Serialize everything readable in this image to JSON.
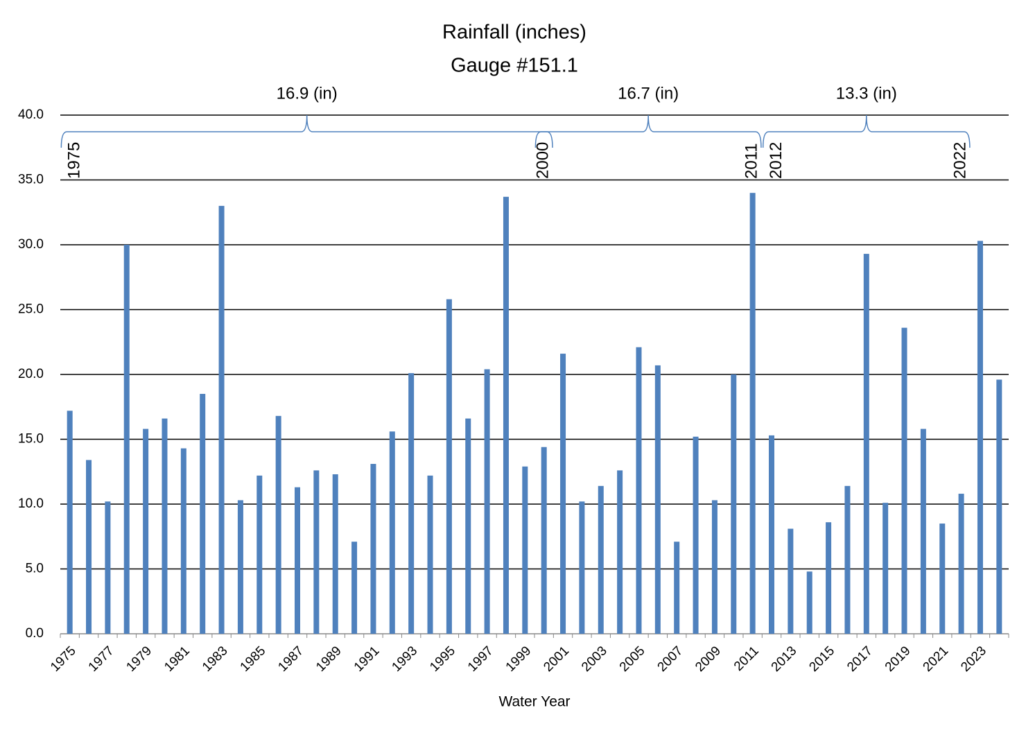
{
  "chart_data": {
    "type": "bar",
    "title": "Rainfall (inches)",
    "subtitle": "Gauge #151.1",
    "x_label": "Water Year",
    "color": "#4f81bd",
    "grid": true,
    "categories": [
      "1975",
      null,
      "1977",
      null,
      "1979",
      null,
      "1981",
      null,
      "1983",
      null,
      "1985",
      null,
      "1987",
      null,
      "1989",
      null,
      "1991",
      null,
      "1993",
      null,
      "1995",
      null,
      "1997",
      null,
      "1999",
      null,
      "2001",
      null,
      "2003",
      null,
      "2005",
      null,
      "2007",
      null,
      "2009",
      null,
      "2011",
      null,
      "2013",
      null,
      "2015",
      null,
      "2017",
      null,
      "2019",
      null,
      "2021",
      null,
      "2023",
      null
    ],
    "values": [
      17.2,
      13.4,
      10.2,
      30.0,
      15.8,
      16.6,
      14.3,
      18.5,
      33.0,
      10.3,
      12.2,
      16.8,
      11.3,
      12.6,
      12.3,
      7.1,
      13.1,
      15.6,
      20.1,
      12.2,
      25.8,
      16.6,
      20.4,
      33.7,
      12.9,
      14.4,
      21.6,
      10.2,
      11.4,
      12.6,
      22.1,
      20.7,
      7.1,
      15.2,
      10.3,
      20.0,
      34.0,
      15.3,
      8.1,
      4.8,
      8.6,
      11.4,
      29.3,
      10.1,
      23.6,
      15.8,
      8.5,
      10.8,
      30.3,
      19.6
    ],
    "ylim": [
      0,
      40
    ],
    "yticks": [
      {
        "value": 0,
        "label": "0.0"
      },
      {
        "value": 5,
        "label": "5.0"
      },
      {
        "value": 10,
        "label": "10.0"
      },
      {
        "value": 15,
        "label": "15.0"
      },
      {
        "value": 20,
        "label": "20.0"
      },
      {
        "value": 25,
        "label": "25.0"
      },
      {
        "value": 30,
        "label": "30.0"
      },
      {
        "value": 35,
        "label": "35.0"
      },
      {
        "value": 40,
        "label": "40.0"
      }
    ],
    "periods": [
      {
        "label": "16.9 (in)",
        "start": "1975",
        "end": "2000"
      },
      {
        "label": "16.7 (in)",
        "start": "2000",
        "end": "2011"
      },
      {
        "label": "13.3 (in)",
        "start": "2012",
        "end": "2022"
      }
    ]
  }
}
